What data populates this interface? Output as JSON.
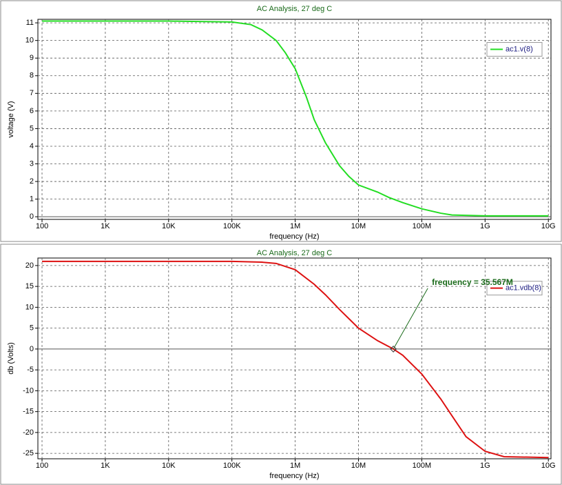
{
  "chart_data": [
    {
      "type": "line",
      "title": "AC Analysis, 27 deg C",
      "x_label": "frequency (Hz)",
      "y_label": "voltage (V)",
      "x_scale": "log",
      "grid": true,
      "legend": "upper right",
      "xlim": [
        86,
        11000000000
      ],
      "ylim": [
        -0.15,
        11.2
      ],
      "xticks": [
        100,
        {
          "value": 1000,
          "label": "1K"
        },
        {
          "value": 10000,
          "label": "10K"
        },
        {
          "value": 100000,
          "label": "100K"
        },
        {
          "value": 1000000,
          "label": "1M"
        },
        {
          "value": 10000000,
          "label": "10M"
        },
        {
          "value": 100000000,
          "label": "100M"
        },
        {
          "value": 1000000000,
          "label": "1G"
        },
        {
          "value": 10000000000,
          "label": "10G"
        }
      ],
      "yticks": [
        0,
        1,
        2,
        3,
        4,
        5,
        6,
        7,
        8,
        9,
        10,
        11
      ],
      "x": [
        100,
        1000,
        10000,
        100000,
        200000,
        300000,
        500000,
        700000,
        1000000,
        1500000,
        2000000,
        3000000,
        5000000,
        7000000,
        10000000,
        20000000,
        30000000,
        50000000,
        100000000,
        200000000,
        300000000,
        1000000000,
        10000000000
      ],
      "series": [
        {
          "name": "ac1.v(8)",
          "color": "#22dd22",
          "values": [
            11.1,
            11.1,
            11.1,
            11.05,
            10.9,
            10.6,
            10.0,
            9.3,
            8.4,
            6.8,
            5.5,
            4.2,
            2.9,
            2.3,
            1.8,
            1.4,
            1.1,
            0.8,
            0.45,
            0.2,
            0.1,
            0.05,
            0.05
          ]
        }
      ]
    },
    {
      "type": "line",
      "title": "AC Analysis, 27 deg C",
      "x_label": "frequency (Hz)",
      "y_label": "db (Volts)",
      "x_scale": "log",
      "grid": true,
      "legend": "upper right",
      "xlim": [
        86,
        11000000000
      ],
      "ylim": [
        -26.3,
        21.8
      ],
      "xticks": [
        100,
        {
          "value": 1000,
          "label": "1K"
        },
        {
          "value": 10000,
          "label": "10K"
        },
        {
          "value": 100000,
          "label": "100K"
        },
        {
          "value": 1000000,
          "label": "1M"
        },
        {
          "value": 10000000,
          "label": "10M"
        },
        {
          "value": 100000000,
          "label": "100M"
        },
        {
          "value": 1000000000,
          "label": "1G"
        },
        {
          "value": 10000000000,
          "label": "10G"
        }
      ],
      "yticks": [
        20,
        15,
        10,
        5,
        0,
        -5,
        -10,
        -15,
        -20,
        -25
      ],
      "x": [
        100,
        100000,
        300000,
        500000,
        1000000,
        2000000,
        3000000,
        5000000,
        10000000,
        20000000,
        35567000,
        50000000,
        100000000,
        200000000,
        300000000,
        500000000,
        1000000000,
        2000000000,
        10000000000
      ],
      "series": [
        {
          "name": "ac1.vdb(8)",
          "color": "#dd1111",
          "values": [
            21,
            21,
            20.8,
            20.5,
            19,
            15.5,
            13,
            9.5,
            5,
            2,
            0,
            -1.5,
            -6,
            -12,
            -16,
            -21,
            -24.5,
            -25.8,
            -26
          ]
        }
      ],
      "annotation": {
        "text": "frequency = 35.567M",
        "x": 35567000,
        "y": 0
      }
    }
  ]
}
